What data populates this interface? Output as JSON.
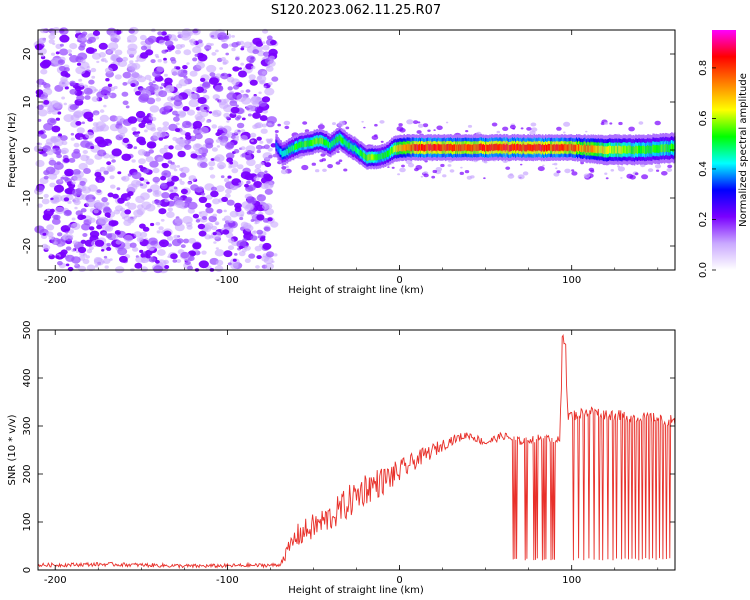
{
  "title": "S120.2023.062.11.25.R07",
  "chart_data": [
    {
      "type": "heatmap",
      "xlabel": "Height of straight line (km)",
      "ylabel": "Frequency (Hz)",
      "xlim": [
        -210,
        160
      ],
      "ylim": [
        -25,
        25
      ],
      "xticks": [
        -200,
        -100,
        0,
        100
      ],
      "yticks": [
        -20,
        -10,
        0,
        10,
        20
      ],
      "colorbar": {
        "label": "Normalized spectral amplitude",
        "range": [
          0,
          0.95
        ],
        "ticks": [
          0.0,
          0.2,
          0.4,
          0.6,
          0.8
        ],
        "colormap": [
          "#ffffff",
          "#c9a8ff",
          "#7a00ff",
          "#0000ff",
          "#00ffff",
          "#00ff00",
          "#ffff00",
          "#ff8000",
          "#ff0000",
          "#ff00ff"
        ]
      },
      "noise_region_x": [
        -210,
        -72
      ],
      "ridge": {
        "x": [
          -72,
          -68,
          -64,
          -58,
          -52,
          -46,
          -40,
          -35,
          -30,
          -25,
          -20,
          -16,
          -12,
          -8,
          -4,
          0,
          10,
          20,
          40,
          60,
          80,
          100,
          120,
          140,
          160
        ],
        "freq": [
          1,
          -1,
          0,
          1,
          1.5,
          2,
          1,
          2.5,
          1,
          0,
          -1.5,
          -1.5,
          -1.5,
          -1,
          0,
          0.5,
          0.5,
          0.5,
          0.5,
          0.5,
          0.5,
          0.5,
          0,
          0,
          0.5
        ],
        "amplitude": [
          0.35,
          0.45,
          0.5,
          0.55,
          0.55,
          0.6,
          0.5,
          0.55,
          0.5,
          0.5,
          0.55,
          0.6,
          0.55,
          0.5,
          0.6,
          0.7,
          0.85,
          0.85,
          0.8,
          0.85,
          0.85,
          0.8,
          0.65,
          0.55,
          0.55
        ],
        "halfwidth": [
          1.8,
          1.8,
          1.8,
          1.8,
          1.8,
          1.8,
          1.8,
          1.8,
          1.8,
          1.8,
          1.8,
          1.8,
          1.8,
          1.8,
          2.0,
          2.0,
          2.0,
          2.0,
          2.0,
          2.0,
          2.0,
          2.0,
          2.3,
          2.3,
          2.3
        ]
      }
    },
    {
      "type": "line",
      "xlabel": "Height of straight line (km)",
      "ylabel": "SNR (10 * v/v)",
      "xlim": [
        -210,
        160
      ],
      "ylim": [
        0,
        500
      ],
      "xticks": [
        -200,
        -100,
        0,
        100
      ],
      "yticks": [
        0,
        100,
        200,
        300,
        400,
        500
      ],
      "series": [
        {
          "color": "#e8302a",
          "x": [
            -210,
            -170,
            -120,
            -75,
            -70,
            -60,
            -50,
            -40,
            -30,
            -20,
            -10,
            0,
            10,
            20,
            30,
            40,
            50,
            60,
            70,
            80,
            93,
            95,
            98,
            110,
            130,
            150,
            160
          ],
          "y": [
            10,
            12,
            8,
            10,
            10,
            70,
            90,
            110,
            140,
            170,
            185,
            205,
            230,
            250,
            270,
            282,
            265,
            280,
            268,
            275,
            270,
            490,
            320,
            330,
            320,
            315,
            310
          ],
          "noise": [
            4,
            4,
            4,
            4,
            4,
            25,
            28,
            30,
            35,
            35,
            30,
            25,
            18,
            15,
            10,
            8,
            8,
            8,
            8,
            8,
            8,
            10,
            12,
            12,
            12,
            12,
            12
          ]
        }
      ],
      "dropouts": [
        66,
        67,
        68,
        73,
        74,
        78,
        79,
        80,
        83,
        84,
        85,
        88,
        89,
        90,
        101,
        104,
        107,
        110,
        113,
        116,
        118,
        121,
        124,
        126,
        129,
        131,
        133,
        135,
        137,
        139,
        141,
        143,
        145,
        147,
        149,
        151,
        153,
        155,
        157
      ],
      "dropout_floor": 20
    }
  ]
}
